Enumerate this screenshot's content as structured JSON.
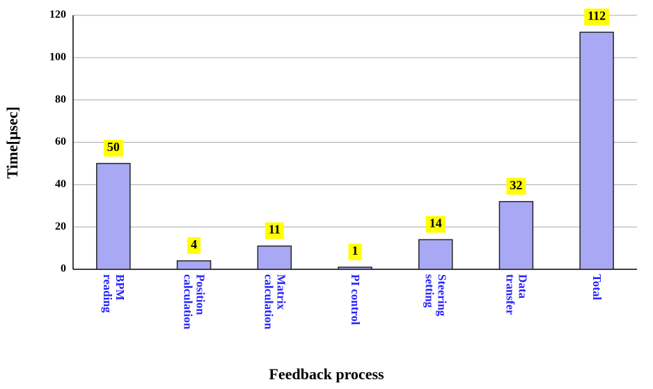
{
  "chart_data": {
    "type": "bar",
    "categories": [
      "BPM reading",
      "Position calculation",
      "Matrix calculation",
      "PI control",
      "Steering setting",
      "Data transfer",
      "Total"
    ],
    "values": [
      50,
      4,
      11,
      1,
      14,
      32,
      112
    ],
    "color": "#a8a8f4",
    "label_color": "#ffff00",
    "xlabel": "Feedback process",
    "ylabel": "Time[μsec]",
    "ylim": [
      0,
      120
    ],
    "yticks": [
      0,
      20,
      40,
      60,
      80,
      100,
      120
    ],
    "grid": true
  }
}
